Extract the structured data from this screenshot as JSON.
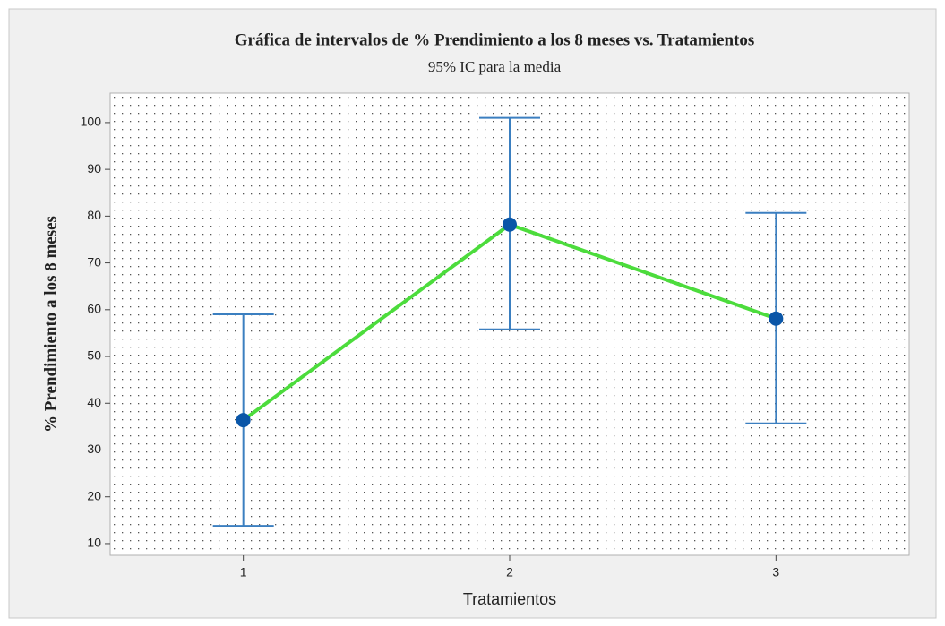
{
  "chart_data": {
    "type": "interval",
    "title": "Gráfica de intervalos de % Prendimiento a los 8 meses vs. Tratamientos",
    "subtitle": "95% IC para la media",
    "x_label": "Tratamientos",
    "y_label": "% Prendimiento a los 8 meses",
    "x": [
      1,
      2,
      3
    ],
    "series": [
      {
        "color": "#0a56a8",
        "line_color": "#4cdc3c",
        "error_color": "#3b7fc0",
        "values": [
          36.4,
          78.2,
          58.1
        ],
        "ci_lower": [
          13.8,
          55.8,
          35.7
        ],
        "ci_upper": [
          59.0,
          101.0,
          80.7
        ]
      }
    ],
    "xlim": [
      0.5,
      3.5
    ],
    "xticks": [
      1,
      2,
      3
    ],
    "ylim": [
      7.5,
      106.3
    ],
    "yticks": [
      10,
      20,
      30,
      40,
      50,
      60,
      70,
      80,
      90,
      100
    ],
    "grid": true
  }
}
